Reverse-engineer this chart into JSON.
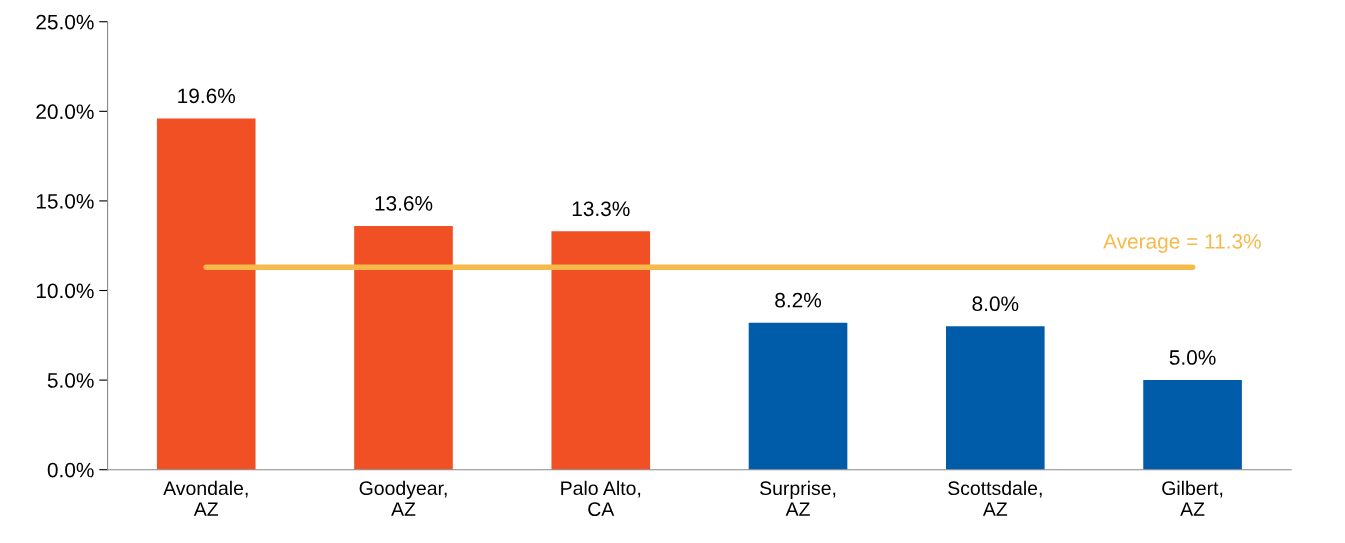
{
  "chart_data": {
    "type": "bar",
    "categories": [
      "Avondale,\nAZ",
      "Goodyear,\nAZ",
      "Palo Alto,\nCA",
      "Surprise,\nAZ",
      "Scottsdale,\nAZ",
      "Gilbert,\nAZ"
    ],
    "values": [
      19.6,
      13.6,
      13.3,
      8.2,
      8.0,
      5.0
    ],
    "colors": [
      "#f05023",
      "#f05023",
      "#f05023",
      "#005ca9",
      "#005ca9",
      "#005ca9"
    ],
    "value_labels": [
      "19.6%",
      "13.6%",
      "13.3%",
      "8.2%",
      "8.0%",
      "5.0%"
    ],
    "ylim": [
      0,
      25
    ],
    "yticks": [
      {
        "value": 0,
        "label": "0.0%"
      },
      {
        "value": 5,
        "label": "5.0%"
      },
      {
        "value": 10,
        "label": "10.0%"
      },
      {
        "value": 15,
        "label": "15.0%"
      },
      {
        "value": 20,
        "label": "20.0%"
      },
      {
        "value": 25,
        "label": "25.0%"
      }
    ],
    "ref_lines": [
      {
        "axis": "y",
        "value": 11.3,
        "label": "Average = 11.3%",
        "color": "#f6b94a"
      }
    ],
    "grid": false
  }
}
